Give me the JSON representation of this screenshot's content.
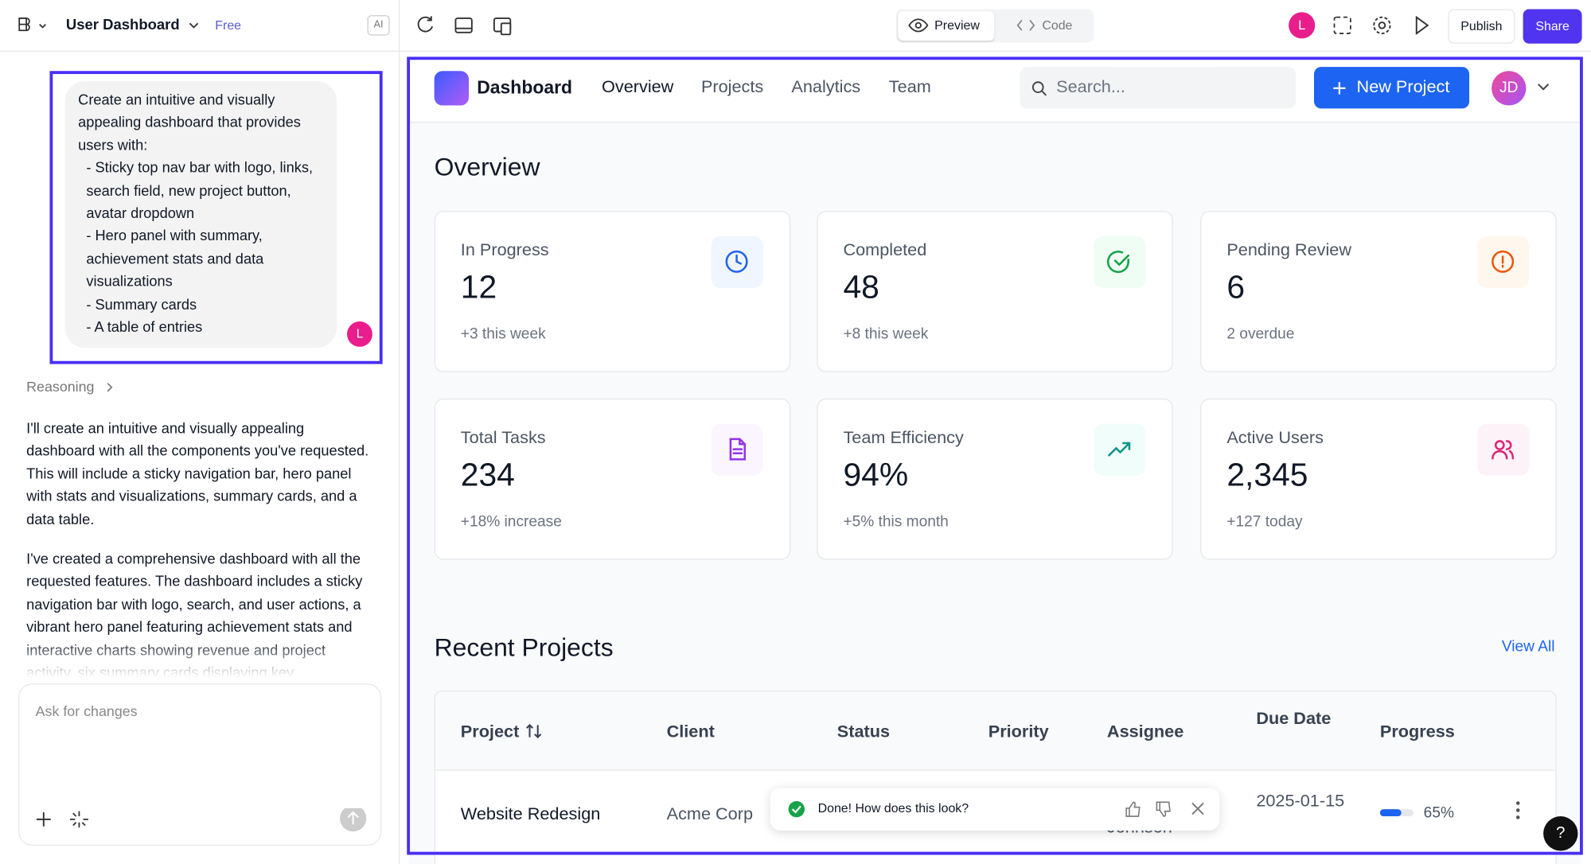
{
  "toolbar": {
    "project_name": "User Dashboard",
    "plan": "Free",
    "ai": "AI",
    "preview": "Preview",
    "code": "Code",
    "avatar": "L",
    "publish": "Publish",
    "share": "Share"
  },
  "chat": {
    "intro": "Create an intuitive and visually appealing dashboard that provides users with:",
    "bullets": [
      "- Sticky top nav bar with logo, links, search field, new project button, avatar dropdown",
      "- Hero panel with summary, achievement stats and data visualizations",
      "- Summary cards",
      "- A table of entries"
    ],
    "avatar": "L",
    "reasoning": "Reasoning",
    "responses": [
      "I'll create an intuitive and visually appealing dashboard with all the components you've requested. This will include a sticky navigation bar, hero panel with stats and visualizations, summary cards, and a data table.",
      "I've created a comprehensive dashboard with all the requested features. The dashboard includes a sticky navigation bar with logo, search, and user actions, a vibrant hero panel featuring achievement stats and interactive charts showing revenue and project activity, six summary cards displaying key"
    ],
    "input_placeholder": "Ask for changes"
  },
  "preview": {
    "nav": {
      "logo": "Dashboard",
      "links": [
        "Overview",
        "Projects",
        "Analytics",
        "Team"
      ],
      "search": "Search...",
      "new_project": "New Project",
      "avatar": "JD"
    },
    "overview_title": "Overview",
    "cards": [
      {
        "label": "In Progress",
        "value": "12",
        "note": "+3 this week"
      },
      {
        "label": "Completed",
        "value": "48",
        "note": "+8 this week"
      },
      {
        "label": "Pending Review",
        "value": "6",
        "note": "2 overdue"
      },
      {
        "label": "Total Tasks",
        "value": "234",
        "note": "+18% increase"
      },
      {
        "label": "Team Efficiency",
        "value": "94%",
        "note": "+5% this month"
      },
      {
        "label": "Active Users",
        "value": "2,345",
        "note": "+127 today"
      }
    ],
    "recent_title": "Recent Projects",
    "view_all": "View All",
    "table": {
      "headers": [
        "Project",
        "Client",
        "Status",
        "Priority",
        "Assignee",
        "Due Date",
        "Progress"
      ],
      "rows": [
        {
          "project": "Website Redesign",
          "client": "Acme Corp",
          "assignee": "Johnson",
          "due_date": "2025-01-15",
          "progress": 65,
          "progress_label": "65%"
        }
      ]
    }
  },
  "toast": {
    "text": "Done! How does this look?"
  },
  "help": "?"
}
